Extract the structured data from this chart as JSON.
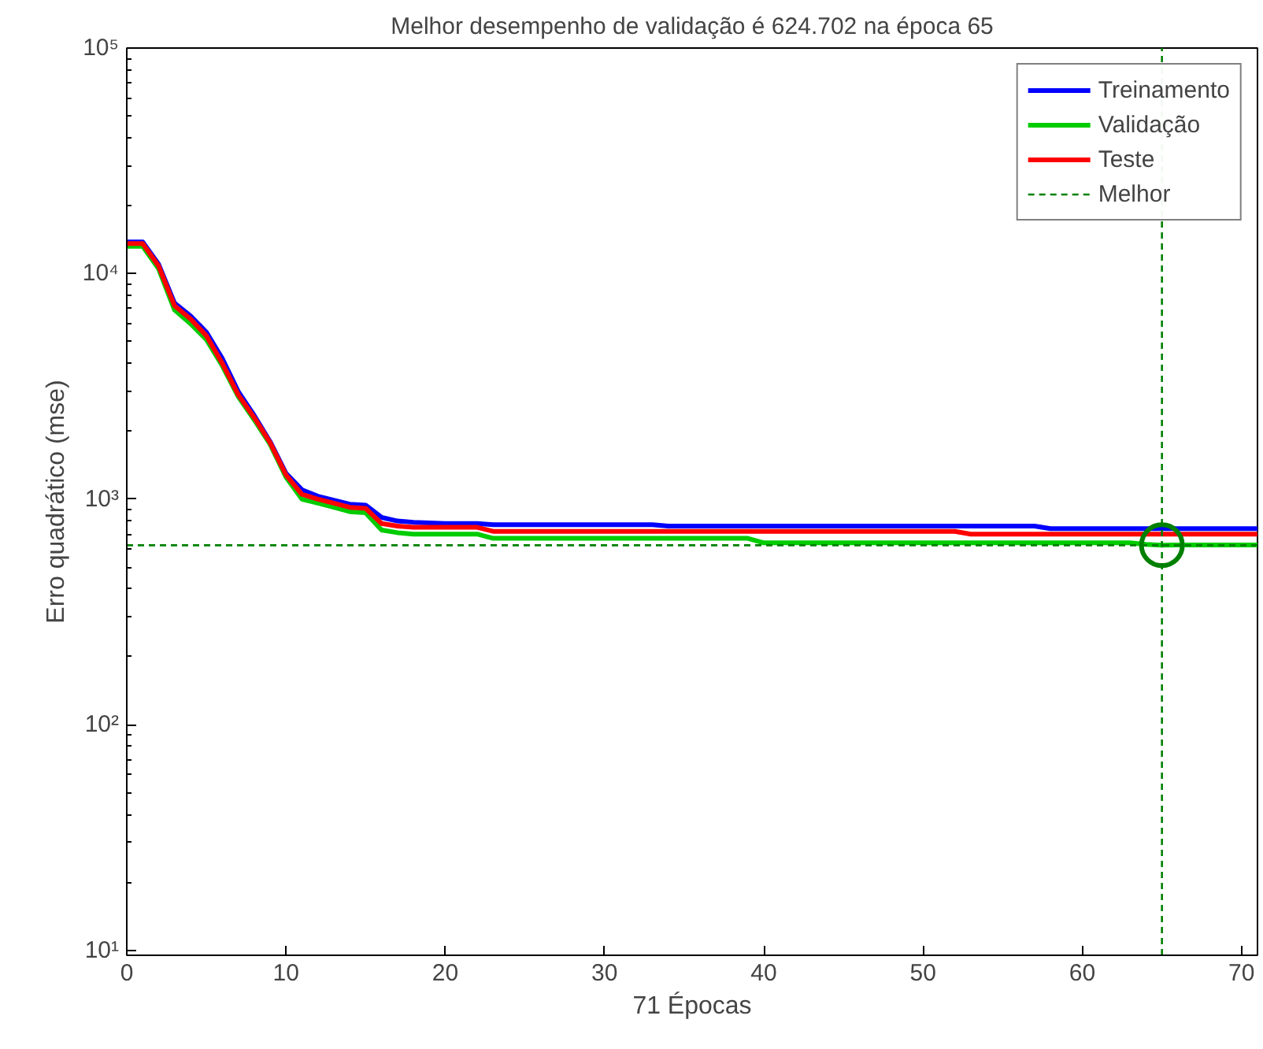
{
  "chart_data": {
    "type": "line",
    "title": "Melhor desempenho de validação é 624.702 na época 65",
    "xlabel": "71 Épocas",
    "ylabel": "Erro quadrático (mse)",
    "x": [
      0,
      1,
      2,
      3,
      4,
      5,
      6,
      7,
      8,
      9,
      10,
      11,
      12,
      13,
      14,
      15,
      16,
      17,
      18,
      19,
      20,
      21,
      22,
      23,
      24,
      25,
      26,
      27,
      28,
      29,
      30,
      31,
      32,
      33,
      34,
      35,
      36,
      37,
      38,
      39,
      40,
      41,
      42,
      43,
      44,
      45,
      46,
      47,
      48,
      49,
      50,
      51,
      52,
      53,
      54,
      55,
      56,
      57,
      58,
      59,
      60,
      61,
      62,
      63,
      64,
      65,
      66,
      67,
      68,
      69,
      70,
      71
    ],
    "series": [
      {
        "name": "Treinamento",
        "color": "#0000ff",
        "values": [
          13800,
          13800,
          11000,
          7400,
          6500,
          5500,
          4200,
          3000,
          2350,
          1800,
          1300,
          1100,
          1030,
          990,
          950,
          940,
          830,
          800,
          790,
          785,
          780,
          780,
          780,
          770,
          770,
          770,
          770,
          770,
          770,
          770,
          770,
          770,
          770,
          770,
          760,
          760,
          760,
          760,
          760,
          760,
          760,
          760,
          760,
          760,
          760,
          760,
          760,
          760,
          760,
          760,
          760,
          760,
          760,
          760,
          760,
          760,
          760,
          760,
          740,
          740,
          740,
          740,
          740,
          740,
          740,
          740,
          740,
          740,
          740,
          740,
          740,
          740
        ]
      },
      {
        "name": "Validação",
        "color": "#00cc00",
        "values": [
          13200,
          13200,
          10500,
          6900,
          6000,
          5100,
          3900,
          2850,
          2250,
          1750,
          1250,
          1000,
          960,
          920,
          880,
          870,
          730,
          710,
          700,
          700,
          700,
          700,
          700,
          670,
          670,
          670,
          670,
          670,
          670,
          670,
          670,
          670,
          670,
          670,
          670,
          670,
          670,
          670,
          670,
          670,
          640,
          640,
          640,
          640,
          640,
          640,
          640,
          640,
          640,
          640,
          640,
          640,
          640,
          640,
          640,
          640,
          640,
          640,
          640,
          640,
          640,
          640,
          640,
          640,
          630,
          624.702,
          626,
          626,
          626,
          626,
          626,
          626
        ]
      },
      {
        "name": "Teste",
        "color": "#ff0000",
        "values": [
          13600,
          13600,
          10800,
          7200,
          6300,
          5300,
          4000,
          2900,
          2300,
          1780,
          1280,
          1050,
          1000,
          960,
          920,
          910,
          780,
          760,
          750,
          750,
          750,
          750,
          750,
          720,
          720,
          720,
          720,
          720,
          720,
          720,
          720,
          720,
          720,
          720,
          720,
          720,
          720,
          720,
          720,
          720,
          720,
          720,
          720,
          720,
          720,
          720,
          720,
          720,
          720,
          720,
          720,
          720,
          720,
          700,
          700,
          700,
          700,
          700,
          700,
          700,
          700,
          700,
          700,
          700,
          700,
          700,
          700,
          700,
          700,
          700,
          700,
          700
        ]
      },
      {
        "type": "scatter",
        "marker": "circle",
        "color": "#008000",
        "x": [
          65
        ],
        "values": [
          624.702
        ]
      }
    ],
    "ref_lines": [
      {
        "axis": "y",
        "value": 624.702,
        "label": "Melhor",
        "color": "#008000",
        "line_style": "dashed"
      },
      {
        "axis": "x",
        "value": 65,
        "color": "#008000",
        "line_style": "dashed"
      }
    ],
    "log": "y",
    "xlim": [
      0,
      71
    ],
    "ylim": [
      9.5,
      100000
    ],
    "xticks": [
      0,
      10,
      20,
      30,
      40,
      50,
      60,
      70
    ],
    "yticks": [
      {
        "value": 10,
        "label": "10¹"
      },
      {
        "value": 100,
        "label": "10²"
      },
      {
        "value": 1000,
        "label": "10³"
      },
      {
        "value": 10000,
        "label": "10⁴"
      },
      {
        "value": 100000,
        "label": "10⁵"
      }
    ],
    "grid": false,
    "legend": "top right",
    "marker": "none",
    "line_style": "solid"
  }
}
